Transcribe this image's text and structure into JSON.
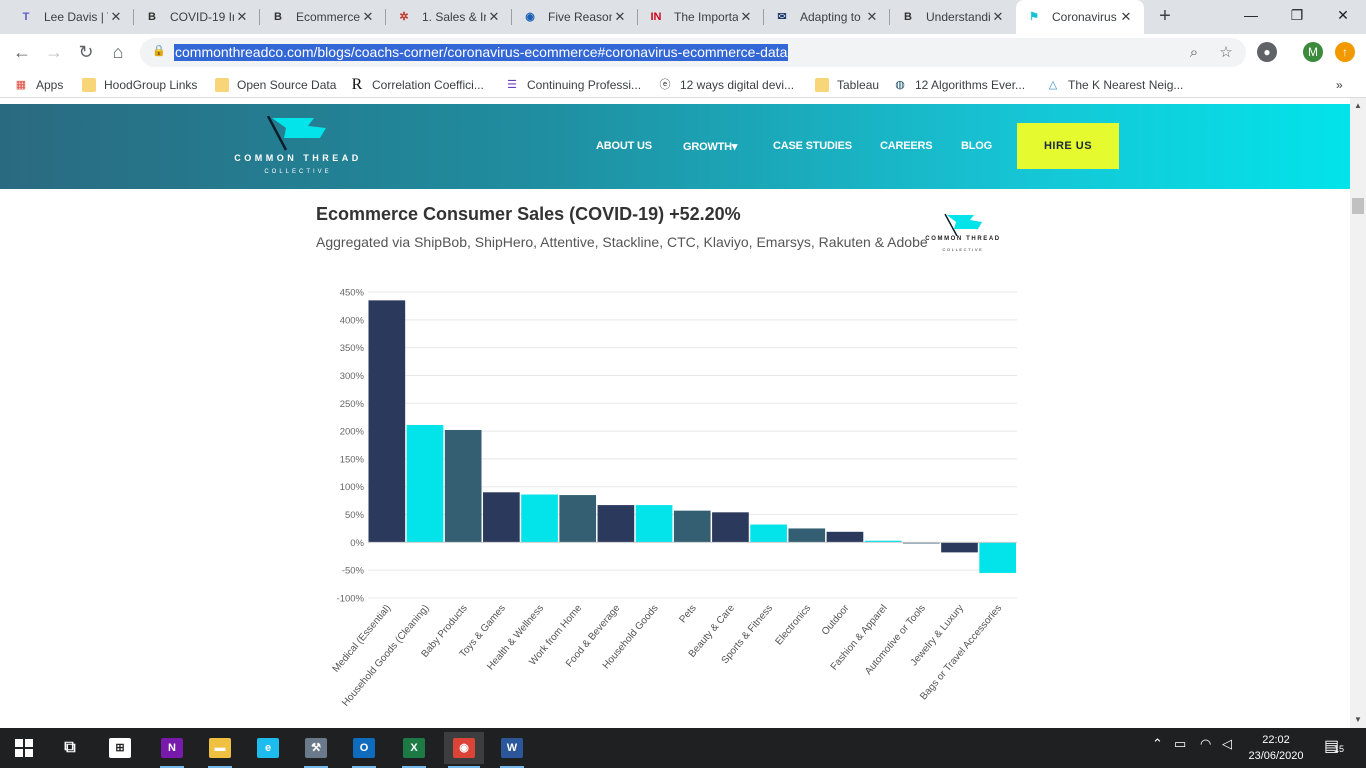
{
  "browser": {
    "tabs": [
      {
        "title": "Lee Davis | T",
        "icon": "teams-icon",
        "color": "#5b5fc7",
        "glyph": "T"
      },
      {
        "title": "COVID-19 Im",
        "icon": "article-icon",
        "color": "#333333",
        "glyph": "B"
      },
      {
        "title": "Ecommerce",
        "icon": "article-icon",
        "color": "#333333",
        "glyph": "B"
      },
      {
        "title": "1. Sales & In",
        "icon": "gear-icon",
        "color": "#c0392b",
        "glyph": "✲"
      },
      {
        "title": "Five Reason",
        "icon": "shield-icon",
        "color": "#1a5fb4",
        "glyph": "◉"
      },
      {
        "title": "The Importa",
        "icon": "in-logo-icon",
        "color": "#d0021b",
        "glyph": "IN"
      },
      {
        "title": "Adapting to",
        "icon": "mail-icon",
        "color": "#1a3a6b",
        "glyph": "✉"
      },
      {
        "title": "Understandi",
        "icon": "article-icon",
        "color": "#333333",
        "glyph": "B"
      },
      {
        "title": "Coronavirus",
        "icon": "flag-icon",
        "color": "#17c2d6",
        "glyph": "⚑"
      }
    ],
    "new_tab": "+",
    "url": "commonthreadco.com/blogs/coachs-corner/coronavirus-ecommerce#coronavirus-ecommerce-data",
    "profile_initial": "M",
    "bookmarks": [
      {
        "label": "Apps",
        "icon": "apps-grid-icon"
      },
      {
        "label": "HoodGroup Links",
        "icon": "folder-icon"
      },
      {
        "label": "Open Source Data",
        "icon": "folder-icon"
      },
      {
        "label": "Correlation Coeffici...",
        "icon": "r-logo-icon"
      },
      {
        "label": "Continuing Professi...",
        "icon": "list-icon"
      },
      {
        "label": "12 ways digital devi...",
        "icon": "e-logo-icon"
      },
      {
        "label": "Tableau",
        "icon": "folder-icon"
      },
      {
        "label": "12 Algorithms Ever...",
        "icon": "globe-icon"
      },
      {
        "label": "The K Nearest Neig...",
        "icon": "triangle-icon"
      }
    ],
    "more_bookmarks": "»"
  },
  "site": {
    "logo_text": "COMMON THREAD",
    "logo_sub": "COLLECTIVE",
    "nav": [
      "ABOUT US",
      "GROWTH▾",
      "CASE STUDIES",
      "CAREERS",
      "BLOG"
    ],
    "cta": "HIRE US",
    "accent": "#03e3ea",
    "cta_color": "#e5fb2f"
  },
  "chart_data": {
    "type": "bar",
    "title": "Ecommerce Consumer Sales (COVID-19) +52.20%",
    "subtitle": "Aggregated via ShipBob, ShipHero, Attentive, Stackline, CTC, Klaviyo, Emarsys, Rakuten & Adobe",
    "categories": [
      "Medical (Essential)",
      "Household Goods (Cleaning)",
      "Baby Products",
      "Toys & Games",
      "Health & Wellness",
      "Work from Home",
      "Food & Beverage",
      "Household Goods",
      "Pets",
      "Beauty & Care",
      "Sports & Fitness",
      "Electronics",
      "Outdoor",
      "Fashion & Apparel",
      "Automotive or Tools",
      "Jewelry & Luxury",
      "Bags or Travel Accessories"
    ],
    "values": [
      435,
      211,
      202,
      90,
      86,
      85,
      67,
      67,
      57,
      54,
      32,
      25,
      19,
      3,
      -2,
      -18,
      -55
    ],
    "ylim": [
      -100,
      450
    ],
    "yticks": [
      -100,
      -50,
      0,
      50,
      100,
      150,
      200,
      250,
      300,
      350,
      400,
      450
    ],
    "tick_suffix": "%",
    "colors": [
      "#2b3a5c",
      "#03e3ea",
      "#345f73"
    ],
    "grid": true,
    "xlabel": "",
    "ylabel": ""
  },
  "taskbar": {
    "apps": [
      {
        "icon": "onenote-icon",
        "color": "#7719aa",
        "glyph": "N"
      },
      {
        "icon": "file-explorer-icon",
        "color": "#f0c040",
        "glyph": "▬"
      },
      {
        "icon": "internet-explorer-icon",
        "color": "#1ebbee",
        "glyph": "e"
      },
      {
        "icon": "tools-icon",
        "color": "#6b7a8a",
        "glyph": "⚒"
      },
      {
        "icon": "outlook-icon",
        "color": "#0f6cbd",
        "glyph": "O"
      },
      {
        "icon": "excel-icon",
        "color": "#1d7a45",
        "glyph": "X"
      },
      {
        "icon": "chrome-icon",
        "color": "#db4437",
        "glyph": "◉"
      },
      {
        "icon": "word-icon",
        "color": "#2b579a",
        "glyph": "W"
      }
    ],
    "time": "22:02",
    "date": "23/06/2020",
    "notifications": "15"
  }
}
